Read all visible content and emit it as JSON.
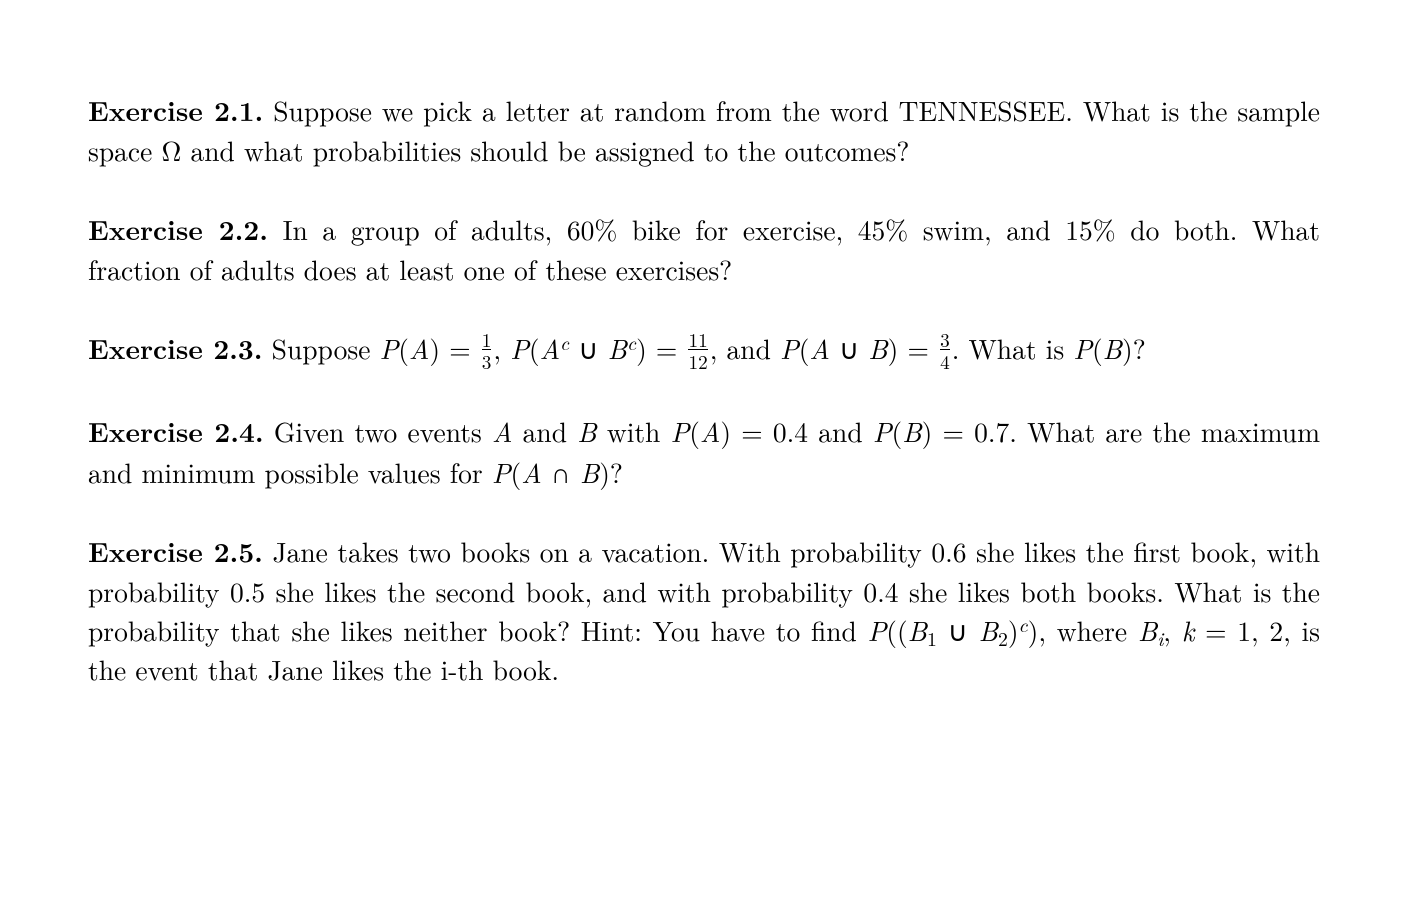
{
  "typography": {
    "font_family": "Latin Modern Roman / Computer Modern (serif)",
    "font_size_pt": 20,
    "line_height": 1.42,
    "text_color": "#000000",
    "background_color": "#ffffff",
    "label_weight": "bold",
    "justify": true
  },
  "exercises": [
    {
      "label": "Exercise 2.1.",
      "text_html": " Suppose we pick a letter at random from the word TENNESSEE. What is the sample space Ω and what probabilities should be assigned to the outcomes?"
    },
    {
      "label": "Exercise 2.2.",
      "text_html": " In a group of adults, 60% bike for exercise, 45% swim, and 15% do both. What fraction of adults does at least one of these exercises?"
    },
    {
      "label": "Exercise 2.3.",
      "text_html": " Suppose <span class='math-i'>P</span>(<span class='math-i'>A</span>) = <span class='frac'><span class='num'>1</span><span class='den'>3</span></span>, <span class='math-i'>P</span>(<span class='math-i'>A</span><sup>c</sup> ∪ <span class='math-i'>B</span><sup>c</sup>) = <span class='frac'><span class='num'>11</span><span class='den'>12</span></span>, and <span class='math-i'>P</span>(<span class='math-i'>A</span> ∪ <span class='math-i'>B</span>) = <span class='frac'><span class='num'>3</span><span class='den'>4</span></span>. What is <span class='math-i'>P</span>(<span class='math-i'>B</span>)?"
    },
    {
      "label": "Exercise 2.4.",
      "text_html": " Given two events <span class='math-i'>A</span> and <span class='math-i'>B</span> with <span class='math-i'>P</span>(<span class='math-i'>A</span>) = 0.4 and <span class='math-i'>P</span>(<span class='math-i'>B</span>) = 0.7. What are the maximum and minimum possible values for <span class='math-i'>P</span>(<span class='math-i'>A</span> ∩ <span class='math-i'>B</span>)?"
    },
    {
      "label": "Exercise 2.5.",
      "text_html": " Jane takes two books on a vacation. With probability 0.6 she likes the first book, with probability 0.5 she likes the second book, and with probability 0.4 she likes both books. What is the probability that she likes neither book? Hint: You have to find <span class='math-i'>P</span>((<span class='math-i'>B</span><sub>1</sub> ∪ <span class='math-i'>B</span><sub>2</sub>)<sup>c</sup>), where <span class='math-i'>B</span><sub><span class='math-i'>i</span></sub>, <span class='math-i'>k</span> = 1, 2, is the event that Jane likes the i-th book."
    }
  ]
}
